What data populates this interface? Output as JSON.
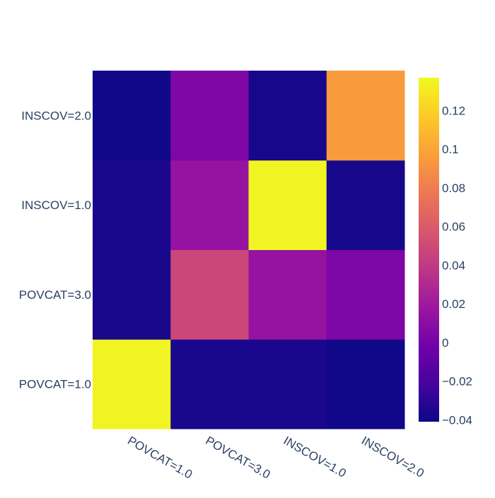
{
  "chart_data": {
    "type": "heatmap",
    "x_categories": [
      "POVCAT=1.0",
      "POVCAT=3.0",
      "INSCOV=1.0",
      "INSCOV=2.0"
    ],
    "y_categories": [
      "POVCAT=1.0",
      "POVCAT=3.0",
      "INSCOV=1.0",
      "INSCOV=2.0"
    ],
    "z": [
      [
        0.135,
        -0.037,
        -0.036,
        -0.04
      ],
      [
        -0.037,
        0.048,
        0.015,
        0.003
      ],
      [
        -0.036,
        0.015,
        0.135,
        -0.038
      ],
      [
        -0.04,
        0.004,
        -0.038,
        0.095
      ]
    ],
    "zmin": -0.041,
    "zmax": 0.137,
    "colorscale": [
      [
        0.0,
        "#0d0887"
      ],
      [
        0.111,
        "#46039f"
      ],
      [
        0.222,
        "#7201a8"
      ],
      [
        0.333,
        "#9c179e"
      ],
      [
        0.444,
        "#bd3786"
      ],
      [
        0.556,
        "#d8576b"
      ],
      [
        0.667,
        "#ed7953"
      ],
      [
        0.778,
        "#fb9f3a"
      ],
      [
        0.889,
        "#fdca26"
      ],
      [
        1.0,
        "#f0f921"
      ]
    ],
    "colorbar_ticks": [
      0.12,
      0.1,
      0.08,
      0.06,
      0.04,
      0.02,
      0,
      -0.02,
      -0.04
    ],
    "colorbar_tick_labels": [
      "0.12",
      "0.1",
      "0.08",
      "0.06",
      "0.04",
      "0.02",
      "0",
      "−0.02",
      "−0.04"
    ],
    "title": "",
    "xlabel": "",
    "ylabel": "",
    "grid": false
  }
}
